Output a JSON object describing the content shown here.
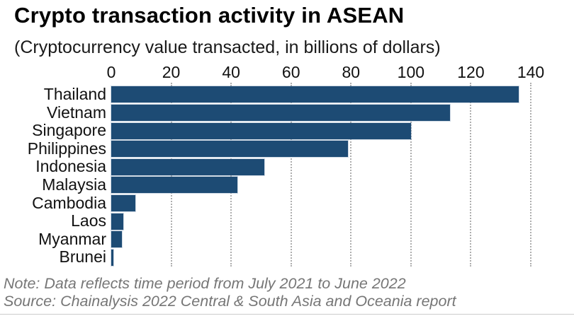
{
  "header": {
    "title": "Crypto transaction activity in ASEAN",
    "subtitle": "(Cryptocurrency value transacted, in billions of dollars)"
  },
  "chart_data": {
    "type": "bar",
    "orientation": "horizontal",
    "title": "Crypto transaction activity in ASEAN",
    "subtitle": "(Cryptocurrency value transacted, in billions of dollars)",
    "categories": [
      "Thailand",
      "Vietnam",
      "Singapore",
      "Philippines",
      "Indonesia",
      "Malaysia",
      "Cambodia",
      "Laos",
      "Myanmar",
      "Brunei"
    ],
    "values": [
      136,
      113,
      100,
      79,
      51,
      42,
      8,
      4,
      3.5,
      0.6
    ],
    "xlabel": "",
    "ylabel": "",
    "xlim": [
      0,
      140
    ],
    "x_ticks": [
      0,
      20,
      40,
      60,
      80,
      100,
      120,
      140
    ],
    "axis_position": "top",
    "grid": "dotted-vertical",
    "legend": "none",
    "bar_color": "#1d4b74",
    "grid_color": "#aeaeae"
  },
  "footer": {
    "note": "Note: Data reflects time period from July 2021 to June 2022",
    "source": "Source: Chainalysis 2022 Central & South Asia and Oceania report"
  }
}
